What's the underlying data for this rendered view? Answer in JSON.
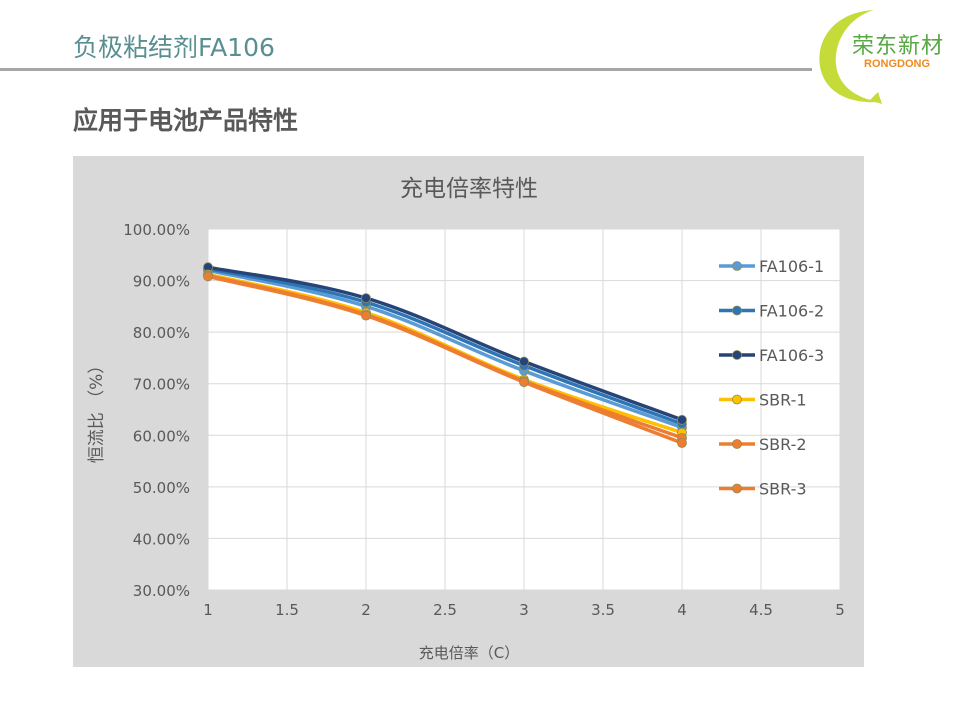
{
  "header": {
    "title": "负极粘结剂FA106",
    "logo_text": "荣东新材",
    "logo_subtext": "RONGDONG"
  },
  "section": {
    "heading": "应用于电池产品特性"
  },
  "colors": {
    "chart_background": "#d9d9d9",
    "plot_background": "#ffffff",
    "gridline": "#d9d9d9",
    "title_text": "#5a8f92",
    "logo_green": "#58a845",
    "logo_orange": "#ef8a1e"
  },
  "chart_data": {
    "type": "line",
    "title": "充电倍率特性",
    "xlabel": "充电倍率（C）",
    "ylabel": "恒流比 （%）",
    "xlim": [
      1,
      5
    ],
    "ylim": [
      30,
      100
    ],
    "x_ticks": [
      "1",
      "1.5",
      "2",
      "2.5",
      "3",
      "3.5",
      "4",
      "4.5",
      "5"
    ],
    "y_ticks": [
      "100.00%",
      "90.00%",
      "80.00%",
      "70.00%",
      "60.00%",
      "50.00%",
      "40.00%",
      "30.00%"
    ],
    "grid": true,
    "legend_position": "right",
    "x": [
      1,
      2,
      3,
      4
    ],
    "series": [
      {
        "name": "FA106-1",
        "color": "#5b9bd5",
        "values": [
          92.0,
          85.0,
          72.5,
          61.5
        ]
      },
      {
        "name": "FA106-2",
        "color": "#2e75b6",
        "values": [
          92.3,
          85.8,
          73.5,
          62.2
        ]
      },
      {
        "name": "FA106-3",
        "color": "#264478",
        "values": [
          92.6,
          86.6,
          74.3,
          63.0
        ]
      },
      {
        "name": "SBR-1",
        "color": "#ffc000",
        "values": [
          91.2,
          83.8,
          70.8,
          60.5
        ]
      },
      {
        "name": "SBR-2",
        "color": "#ed7d31",
        "values": [
          91.0,
          83.4,
          70.5,
          59.5
        ]
      },
      {
        "name": "SBR-3",
        "color": "#ed7d31",
        "values": [
          90.8,
          83.2,
          70.3,
          58.5
        ]
      }
    ]
  }
}
